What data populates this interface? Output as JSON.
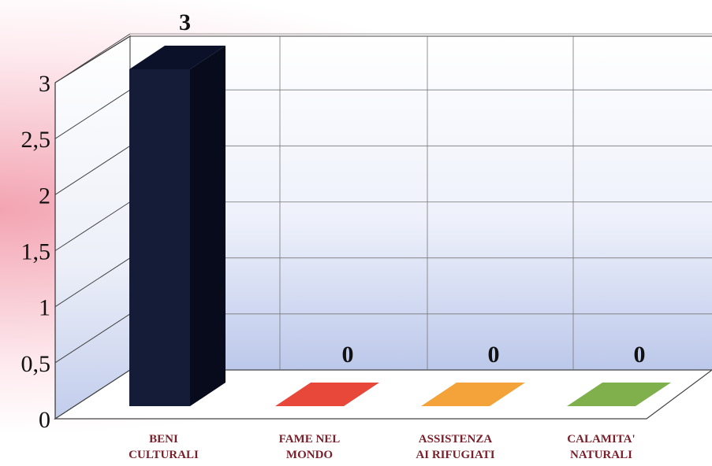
{
  "chart_data": {
    "type": "bar",
    "categories": [
      [
        "BENI",
        "CULTURALI"
      ],
      [
        "FAME NEL",
        "MONDO"
      ],
      [
        "ASSISTENZA",
        "AI RIFUGIATI"
      ],
      [
        "CALAMITA'",
        "NATURALI"
      ]
    ],
    "values": [
      3,
      0,
      0,
      0
    ],
    "value_labels": [
      "3",
      "0",
      "0",
      "0"
    ],
    "bar_colors": [
      "#141c38",
      "#e8483a",
      "#f3a33a",
      "#7fb04c"
    ],
    "ylim": [
      0,
      3
    ],
    "yticks": [
      "0",
      "0,5",
      "1",
      "1,5",
      "2",
      "2,5",
      "3"
    ],
    "grid": true,
    "title": "",
    "xlabel": "",
    "ylabel": ""
  }
}
